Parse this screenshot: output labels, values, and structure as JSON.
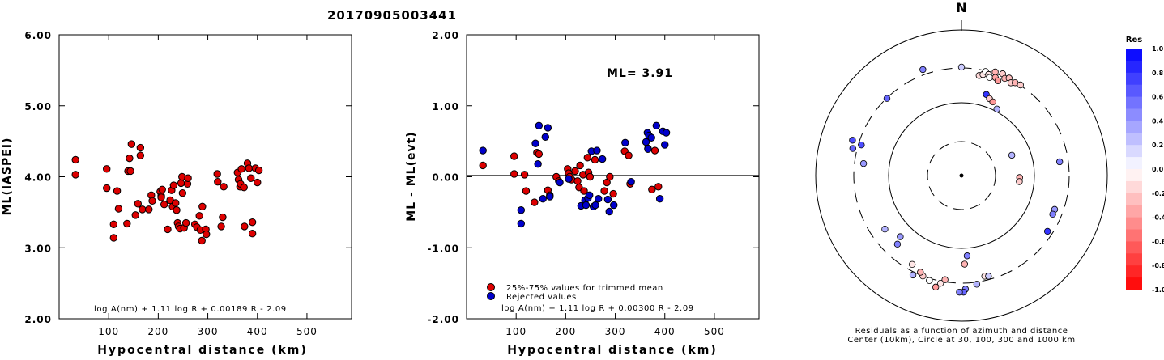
{
  "event_id": "20170905003441",
  "chart_data": [
    {
      "type": "scatter",
      "xlabel": "Hypocentral distance (km)",
      "ylabel": "ML(IASPEI)",
      "xlim": [
        0,
        590
      ],
      "ylim": [
        2.0,
        6.0
      ],
      "xticks": [
        "100",
        "200",
        "300",
        "400",
        "500"
      ],
      "yticks": [
        "2.00",
        "3.00",
        "4.00",
        "5.00",
        "6.00"
      ],
      "formula": "log A(nm) + 1.11 log R + 0.00189 R - 2.09",
      "series": [
        {
          "color": "#dd0000",
          "points": [
            [
              33,
              4.24
            ],
            [
              33,
              4.03
            ],
            [
              96,
              4.11
            ],
            [
              96,
              3.84
            ],
            [
              110,
              3.33
            ],
            [
              110,
              3.14
            ],
            [
              117,
              3.8
            ],
            [
              120,
              3.55
            ],
            [
              137,
              3.34
            ],
            [
              139,
              4.08
            ],
            [
              142,
              4.26
            ],
            [
              144,
              4.08
            ],
            [
              146,
              4.46
            ],
            [
              154,
              3.46
            ],
            [
              159,
              3.62
            ],
            [
              164,
              4.3
            ],
            [
              164,
              4.41
            ],
            [
              168,
              3.54
            ],
            [
              181,
              3.54
            ],
            [
              186,
              3.74
            ],
            [
              188,
              3.66
            ],
            [
              204,
              3.79
            ],
            [
              206,
              3.73
            ],
            [
              206,
              3.71
            ],
            [
              208,
              3.82
            ],
            [
              212,
              3.61
            ],
            [
              219,
              3.26
            ],
            [
              224,
              3.67
            ],
            [
              227,
              3.81
            ],
            [
              229,
              3.58
            ],
            [
              231,
              3.88
            ],
            [
              235,
              3.63
            ],
            [
              237,
              3.53
            ],
            [
              239,
              3.35
            ],
            [
              241,
              3.3
            ],
            [
              244,
              3.27
            ],
            [
              246,
              3.91
            ],
            [
              248,
              4.0
            ],
            [
              249,
              3.77
            ],
            [
              252,
              3.28
            ],
            [
              256,
              3.35
            ],
            [
              259,
              3.9
            ],
            [
              260,
              3.98
            ],
            [
              274,
              3.33
            ],
            [
              278,
              3.29
            ],
            [
              283,
              3.45
            ],
            [
              285,
              3.25
            ],
            [
              288,
              3.1
            ],
            [
              289,
              3.58
            ],
            [
              296,
              3.26
            ],
            [
              297,
              3.19
            ],
            [
              319,
              4.04
            ],
            [
              320,
              3.93
            ],
            [
              327,
              3.3
            ],
            [
              330,
              3.43
            ],
            [
              332,
              3.86
            ],
            [
              360,
              4.06
            ],
            [
              362,
              3.96
            ],
            [
              365,
              3.86
            ],
            [
              366,
              3.9
            ],
            [
              368,
              4.11
            ],
            [
              373,
              3.85
            ],
            [
              374,
              3.3
            ],
            [
              380,
              4.19
            ],
            [
              383,
              4.12
            ],
            [
              387,
              3.98
            ],
            [
              390,
              3.2
            ],
            [
              390,
              3.36
            ],
            [
              396,
              4.12
            ],
            [
              400,
              3.92
            ],
            [
              403,
              4.09
            ]
          ]
        }
      ]
    },
    {
      "type": "scatter",
      "xlabel": "Hypocentral distance (km)",
      "ylabel": "ML - ML(evt)",
      "xlim": [
        0,
        590
      ],
      "ylim": [
        -2.0,
        2.0
      ],
      "xticks": [
        "100",
        "200",
        "300",
        "400",
        "500"
      ],
      "yticks": [
        "-2.00",
        "-1.00",
        "0.00",
        "1.00",
        "2.00"
      ],
      "annotation": "ML= 3.91",
      "formula": "log A(nm) + 1.11 log R + 0.00300 R - 2.09",
      "legend": [
        "25%-75% values for trimmed mean",
        "Rejected values"
      ],
      "legend_placement": "bottom-left",
      "series": [
        {
          "name": "25%-75% values for trimmed mean",
          "color": "#dd0000",
          "points": [
            [
              33,
              0.16
            ],
            [
              96,
              0.29
            ],
            [
              96,
              0.04
            ],
            [
              117,
              0.03
            ],
            [
              120,
              -0.2
            ],
            [
              137,
              -0.36
            ],
            [
              142,
              0.34
            ],
            [
              146,
              0.32
            ],
            [
              164,
              -0.19
            ],
            [
              168,
              -0.26
            ],
            [
              181,
              0.0
            ],
            [
              186,
              -0.06
            ],
            [
              204,
              0.11
            ],
            [
              206,
              0.05
            ],
            [
              208,
              0.0
            ],
            [
              212,
              -0.04
            ],
            [
              219,
              0.08
            ],
            [
              224,
              -0.06
            ],
            [
              227,
              -0.15
            ],
            [
              229,
              0.16
            ],
            [
              235,
              0.03
            ],
            [
              237,
              -0.2
            ],
            [
              244,
              0.27
            ],
            [
              246,
              0.06
            ],
            [
              249,
              0.0
            ],
            [
              259,
              0.24
            ],
            [
              278,
              -0.2
            ],
            [
              283,
              -0.08
            ],
            [
              289,
              0.0
            ],
            [
              296,
              -0.24
            ],
            [
              319,
              0.36
            ],
            [
              327,
              0.3
            ],
            [
              330,
              -0.1
            ],
            [
              366,
              0.4
            ],
            [
              374,
              -0.18
            ],
            [
              380,
              0.37
            ],
            [
              387,
              -0.14
            ]
          ]
        },
        {
          "name": "Rejected values",
          "color": "#0000cc",
          "points": [
            [
              33,
              0.37
            ],
            [
              110,
              -0.47
            ],
            [
              110,
              -0.66
            ],
            [
              139,
              0.47
            ],
            [
              144,
              0.18
            ],
            [
              146,
              0.72
            ],
            [
              154,
              -0.31
            ],
            [
              159,
              0.56
            ],
            [
              164,
              0.69
            ],
            [
              168,
              -0.28
            ],
            [
              188,
              -0.08
            ],
            [
              206,
              -0.03
            ],
            [
              231,
              -0.41
            ],
            [
              239,
              -0.33
            ],
            [
              241,
              -0.4
            ],
            [
              245,
              -0.3
            ],
            [
              248,
              -0.26
            ],
            [
              252,
              0.36
            ],
            [
              256,
              -0.42
            ],
            [
              260,
              -0.4
            ],
            [
              263,
              0.37
            ],
            [
              266,
              -0.31
            ],
            [
              274,
              0.25
            ],
            [
              285,
              -0.32
            ],
            [
              288,
              -0.49
            ],
            [
              297,
              -0.4
            ],
            [
              320,
              0.48
            ],
            [
              332,
              -0.07
            ],
            [
              362,
              0.49
            ],
            [
              365,
              0.62
            ],
            [
              366,
              0.39
            ],
            [
              368,
              0.58
            ],
            [
              373,
              0.55
            ],
            [
              383,
              0.72
            ],
            [
              390,
              -0.31
            ],
            [
              396,
              0.64
            ],
            [
              400,
              0.45
            ],
            [
              403,
              0.62
            ]
          ]
        }
      ]
    },
    {
      "type": "polar",
      "north_label": "N",
      "caption_line1": "Residuals as a function of azimuth and distance",
      "caption_line2": "Center (10km), Circle at 30, 100, 300 and 1000 km",
      "colorbar_title": "Res",
      "colorbar_ticks": [
        "1.0",
        "0.8",
        "0.6",
        "0.4",
        "0.2",
        "0.0",
        "-0.2",
        "-0.4",
        "-0.6",
        "-0.8",
        "-1.0"
      ],
      "rings_km": [
        30,
        100,
        300,
        1000
      ],
      "stations": [
        {
          "az": 0,
          "d": 252,
          "res": 0.2
        },
        {
          "az": -20,
          "d": 262,
          "res": 0.5
        },
        {
          "az": 10,
          "d": 236,
          "res": -0.15
        },
        {
          "az": 12,
          "d": 240,
          "res": -0.1
        },
        {
          "az": 13,
          "d": 248,
          "res": 0.0
        },
        {
          "az": 15,
          "d": 243,
          "res": -0.1
        },
        {
          "az": 16,
          "d": 237,
          "res": 0.0
        },
        {
          "az": 18,
          "d": 253,
          "res": -0.3
        },
        {
          "az": 19,
          "d": 241,
          "res": -0.35
        },
        {
          "az": 21,
          "d": 236,
          "res": -0.4
        },
        {
          "az": 22,
          "d": 255,
          "res": -0.2
        },
        {
          "az": 24,
          "d": 247,
          "res": -0.3
        },
        {
          "az": 26,
          "d": 252,
          "res": -0.25
        },
        {
          "az": 28,
          "d": 244,
          "res": -0.2
        },
        {
          "az": 30,
          "d": 249,
          "res": -0.3
        },
        {
          "az": 33,
          "d": 251,
          "res": -0.2
        },
        {
          "az": 17,
          "d": 197,
          "res": 0.8
        },
        {
          "az": 20,
          "d": 190,
          "res": -0.2
        },
        {
          "az": 23,
          "d": 186,
          "res": -0.4
        },
        {
          "az": 28,
          "d": 175,
          "res": 0.3
        },
        {
          "az": 68,
          "d": 126,
          "res": 0.3
        },
        {
          "az": 92,
          "d": 135,
          "res": -0.3
        },
        {
          "az": 96,
          "d": 135,
          "res": -0.2
        },
        {
          "az": 82,
          "d": 230,
          "res": 0.5
        },
        {
          "az": 110,
          "d": 230,
          "res": 0.4
        },
        {
          "az": 113,
          "d": 230,
          "res": 0.5
        },
        {
          "az": 123,
          "d": 238,
          "res": 0.8
        },
        {
          "az": 178,
          "d": 206,
          "res": -0.3
        },
        {
          "az": 176,
          "d": 187,
          "res": 0.5
        },
        {
          "az": 167,
          "d": 240,
          "res": -0.1
        },
        {
          "az": 172,
          "d": 255,
          "res": 0.3
        },
        {
          "az": 178,
          "d": 264,
          "res": 0.5
        },
        {
          "az": 179,
          "d": 271,
          "res": 0.6
        },
        {
          "az": 181,
          "d": 271,
          "res": 0.5
        },
        {
          "az": 165,
          "d": 242,
          "res": 0.2
        },
        {
          "az": 189,
          "d": 245,
          "res": -0.3
        },
        {
          "az": 191,
          "d": 255,
          "res": -0.1
        },
        {
          "az": 193,
          "d": 266,
          "res": -0.4
        },
        {
          "az": 197,
          "d": 255,
          "res": 0.0
        },
        {
          "az": 201,
          "d": 250,
          "res": -0.2
        },
        {
          "az": 203,
          "d": 244,
          "res": -0.3
        },
        {
          "az": 206,
          "d": 257,
          "res": 0.3
        },
        {
          "az": 209,
          "d": 236,
          "res": -0.1
        },
        {
          "az": 223,
          "d": 218,
          "res": 0.5
        },
        {
          "az": 225,
          "d": 201,
          "res": 0.4
        },
        {
          "az": 235,
          "d": 217,
          "res": 0.3
        },
        {
          "az": 277,
          "d": 229,
          "res": 0.4
        },
        {
          "az": 287,
          "d": 243,
          "res": 0.7
        },
        {
          "az": 284,
          "d": 260,
          "res": 0.6
        },
        {
          "az": 288,
          "d": 266,
          "res": 0.7
        },
        {
          "az": 316,
          "d": 249,
          "res": 0.6
        }
      ]
    }
  ]
}
